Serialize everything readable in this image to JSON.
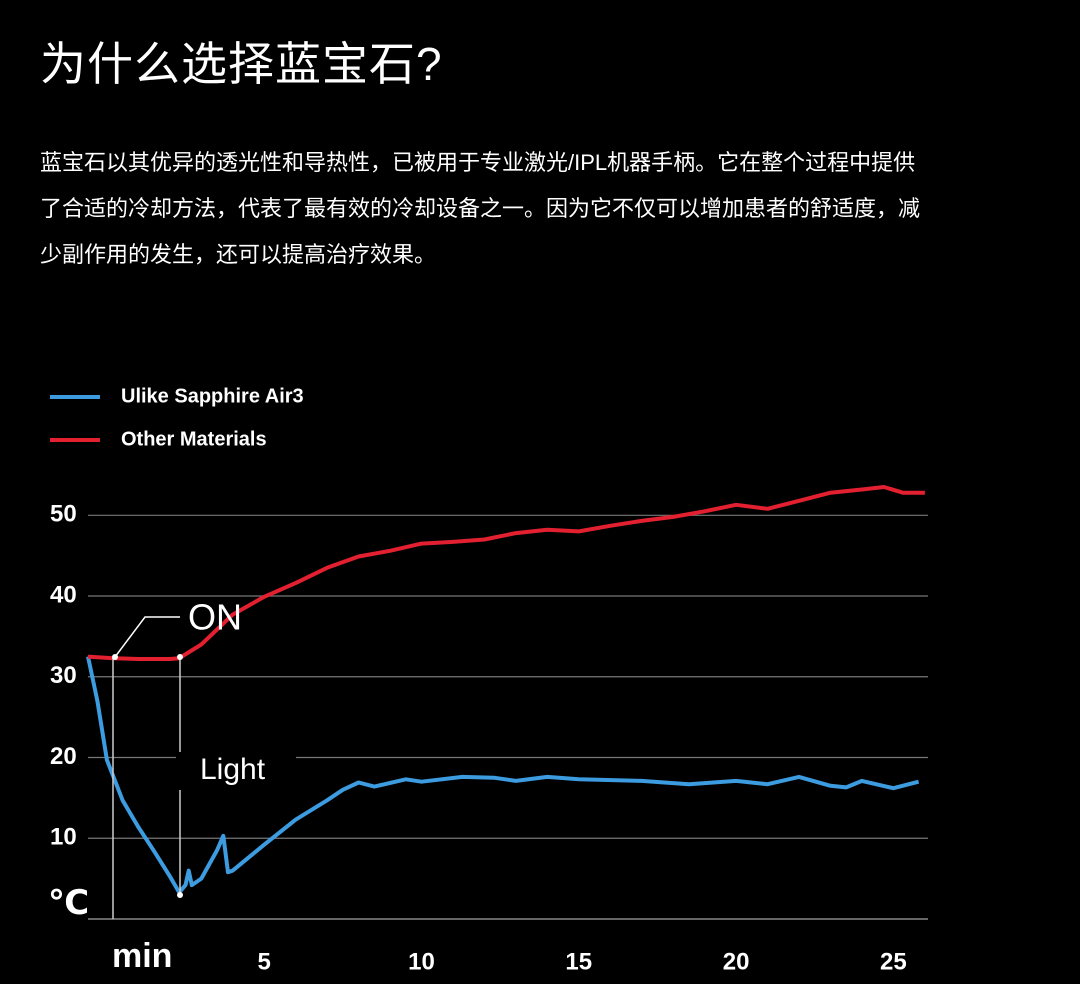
{
  "chart_data": {
    "type": "line",
    "title": "为什么选择蓝宝石?",
    "subtitle": "蓝宝石以其优异的透光性和导热性，已被用于专业激光/IPL机器手柄。它在整个过程中提供了合适的冷却方法，代表了最有效的冷却设备之一。因为它不仅可以增加患者的舒适度，减少副作用的发生，还可以提高治疗效果。",
    "y_label": "℃",
    "x_label": "min",
    "annotations": [
      "ON",
      "Light"
    ],
    "xlim": [
      -0.6,
      26.1
    ],
    "ylim": [
      0,
      54
    ],
    "xticks": [
      5,
      10,
      15,
      20,
      25
    ],
    "yticks": [
      10,
      20,
      30,
      40,
      50
    ],
    "grid": true,
    "legend": "top-left",
    "series": [
      {
        "name": "Ulike Sapphire Air3",
        "color": "#3d9be0",
        "x": [
          -0.6,
          -0.3,
          0,
          0.5,
          1,
          1.5,
          2,
          2.3,
          2.5,
          2.6,
          2.7,
          3,
          3.5,
          3.7,
          3.85,
          4,
          5,
          6,
          7,
          7.5,
          8,
          8.5,
          9.5,
          10,
          11.3,
          12.3,
          13,
          14,
          15,
          17,
          18.5,
          20,
          21,
          22,
          23,
          23.5,
          24,
          25,
          25.8
        ],
        "values": [
          32.5,
          27,
          19.7,
          14.7,
          11.4,
          8.4,
          5.3,
          3.3,
          4.2,
          6,
          4.2,
          5,
          8.5,
          10.3,
          5.8,
          6,
          9.2,
          12.3,
          14.7,
          16,
          16.9,
          16.4,
          17.3,
          17,
          17.6,
          17.5,
          17.1,
          17.6,
          17.3,
          17.1,
          16.7,
          17.1,
          16.7,
          17.6,
          16.5,
          16.3,
          17.1,
          16.2,
          17
        ]
      },
      {
        "name": "Other Materials",
        "color": "#e3202f",
        "x": [
          -0.6,
          0.2,
          1,
          2,
          2.3,
          3,
          4,
          5,
          6,
          7,
          8,
          9,
          10,
          11,
          12,
          13,
          14,
          15,
          16,
          17,
          18,
          19,
          20,
          21,
          22,
          23,
          24,
          24.7,
          25.3,
          26
        ],
        "values": [
          32.5,
          32.3,
          32.2,
          32.2,
          32.3,
          34,
          37.7,
          39.9,
          41.6,
          43.5,
          44.9,
          45.6,
          46.5,
          46.7,
          47,
          47.8,
          48.2,
          48,
          48.7,
          49.3,
          49.8,
          50.5,
          51.3,
          50.8,
          51.8,
          52.8,
          53.2,
          53.5,
          52.8,
          52.8
        ]
      }
    ]
  }
}
